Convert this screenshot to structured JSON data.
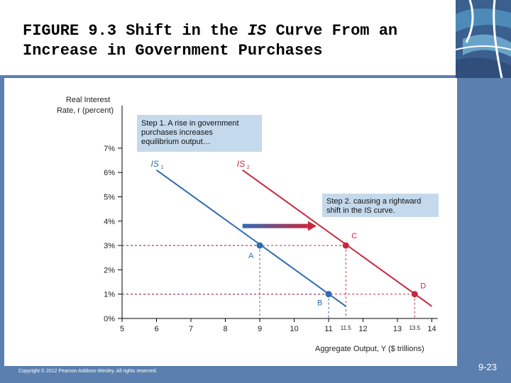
{
  "slide": {
    "title_prefix": "FIGURE 9.3  Shift in the ",
    "title_italic": "IS",
    "title_suffix": " Curve From an Increase in Government Purchases",
    "copyright": "Copyright © 2012 Pearson Addison-Wesley. All rights reserved.",
    "page_number": "9-23",
    "frame_color": "#5b7fae"
  },
  "chart_data": {
    "type": "line",
    "ylabel_line1": "Real Interest",
    "ylabel_line2": "Rate, r (percent)",
    "xlabel": "Aggregate Output, Y ($ trillions)",
    "xlim": [
      5,
      14
    ],
    "ylim": [
      0,
      7
    ],
    "x_ticks": [
      5,
      6,
      7,
      8,
      9,
      10,
      11,
      12,
      13,
      14
    ],
    "y_ticks": [
      0,
      1,
      2,
      3,
      4,
      5,
      6,
      7
    ],
    "y_tick_labels": [
      "0%",
      "1%",
      "2%",
      "3%",
      "4%",
      "5%",
      "6%",
      "7%"
    ],
    "extra_x_ticks": [
      {
        "value": 11.5,
        "label": "11.5"
      },
      {
        "value": 13.5,
        "label": "13.5"
      }
    ],
    "series": [
      {
        "name": "IS",
        "subscript": "1",
        "color": "#2e6bb4",
        "x": [
          6,
          11.5
        ],
        "y": [
          6.1,
          0.5
        ]
      },
      {
        "name": "IS",
        "subscript": "2",
        "color": "#c8283e",
        "x": [
          8.5,
          14
        ],
        "y": [
          6.1,
          0.5
        ]
      }
    ],
    "points": [
      {
        "label": "A",
        "x": 9,
        "y": 3,
        "color": "#2e6bb4"
      },
      {
        "label": "B",
        "x": 11,
        "y": 1,
        "color": "#2e6bb4"
      },
      {
        "label": "C",
        "x": 11.5,
        "y": 3,
        "color": "#c8283e"
      },
      {
        "label": "D",
        "x": 13.5,
        "y": 1,
        "color": "#c8283e"
      }
    ],
    "shift_arrow": {
      "x_from": 8.5,
      "x_to": 10.4,
      "y": 3.8
    },
    "annotations": [
      {
        "lines": [
          "Step 1. A rise in government",
          "purchases increases",
          "equilibrium output…"
        ]
      },
      {
        "lines": [
          "Step 2. causing a rightward",
          "shift in the IS curve."
        ]
      }
    ],
    "guide_color_blue": "#2e6bb4",
    "guide_color_red": "#c8283e",
    "box_color": "#c5d9ec",
    "grid": false
  }
}
